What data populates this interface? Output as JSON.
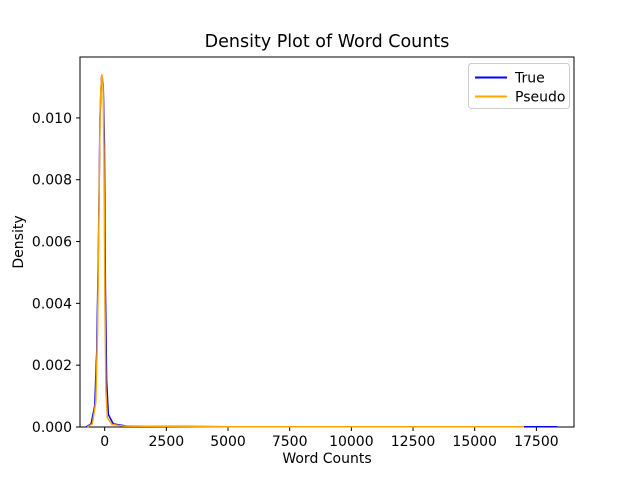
{
  "figure": {
    "background": "#ffffff",
    "spine_color": "#000000",
    "text_color": "#000000"
  },
  "chart_data": {
    "type": "line",
    "title": "Density Plot of Word Counts",
    "xlabel": "Word Counts",
    "ylabel": "Density",
    "xlim": [
      -1000,
      19025
    ],
    "ylim": [
      0,
      0.01197
    ],
    "grid": false,
    "xticks": {
      "values": [
        0,
        2500,
        5000,
        7500,
        10000,
        12500,
        15000,
        17500
      ],
      "labels": [
        "0",
        "2500",
        "5000",
        "7500",
        "10000",
        "12500",
        "15000",
        "17500"
      ]
    },
    "yticks": {
      "values": [
        0,
        0.002,
        0.004,
        0.006,
        0.008,
        0.01
      ],
      "labels": [
        "0.000",
        "0.002",
        "0.004",
        "0.006",
        "0.008",
        "0.010"
      ]
    },
    "legend": {
      "position": "upper right"
    },
    "series": [
      {
        "name": "True",
        "color": "#0000ff",
        "points": [
          [
            -750,
            0
          ],
          [
            -550,
            0.0001
          ],
          [
            -400,
            0.0007
          ],
          [
            -320,
            0.0025
          ],
          [
            -250,
            0.006
          ],
          [
            -190,
            0.01
          ],
          [
            -130,
            0.0113
          ],
          [
            -60,
            0.0111
          ],
          [
            -10,
            0.0092
          ],
          [
            30,
            0.0045
          ],
          [
            80,
            0.0015
          ],
          [
            150,
            0.0004
          ],
          [
            350,
            0.0001
          ],
          [
            900,
            3e-05
          ],
          [
            5000,
            1e-05
          ],
          [
            10000,
            1e-05
          ],
          [
            15000,
            1e-05
          ],
          [
            18350,
            1e-05
          ]
        ]
      },
      {
        "name": "Pseudo",
        "color": "#ffa500",
        "points": [
          [
            -700,
            0
          ],
          [
            -500,
            0.0001
          ],
          [
            -360,
            0.0008
          ],
          [
            -290,
            0.003
          ],
          [
            -230,
            0.007
          ],
          [
            -180,
            0.0105
          ],
          [
            -120,
            0.0114
          ],
          [
            -70,
            0.0112
          ],
          [
            -30,
            0.009
          ],
          [
            10,
            0.004
          ],
          [
            50,
            0.0012
          ],
          [
            110,
            0.0003
          ],
          [
            300,
            8e-05
          ],
          [
            800,
            3e-05
          ],
          [
            5000,
            1e-05
          ],
          [
            10000,
            1e-05
          ],
          [
            17000,
            1e-05
          ]
        ]
      }
    ]
  }
}
